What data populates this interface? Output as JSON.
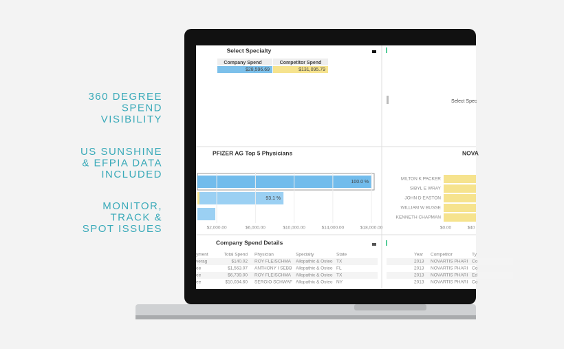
{
  "taglines": [
    [
      "360 DEGREE",
      "SPEND",
      "VISIBILITY"
    ],
    [
      "US SUNSHINE",
      "& EFPIA DATA",
      "INCLUDED"
    ],
    [
      "MONITOR,",
      "TRACK &",
      "SPOT ISSUES"
    ]
  ],
  "specialty_panel": {
    "title": "Select Specialty",
    "headers": [
      "Company Spend",
      "Competitor Spend"
    ],
    "values": [
      "$28,596.69",
      "$131,095.79"
    ]
  },
  "competitor_specialty_panel": {
    "title": "Select Spec"
  },
  "top_physicians": {
    "title": "PFIZER AG Top 5 Physicians",
    "bars": [
      18000,
      8900,
      1850
    ],
    "percent_labels": [
      "100.0 %",
      "93.1 %"
    ],
    "xlim": [
      0,
      18700
    ],
    "xticks": [
      {
        "value": 2000,
        "label": "$2,000.00"
      },
      {
        "value": 6000,
        "label": "$6,000.00"
      },
      {
        "value": 10000,
        "label": "$10,000.00"
      },
      {
        "value": 14000,
        "label": "$14,000.00"
      },
      {
        "value": 18000,
        "label": "$18,000.00"
      }
    ]
  },
  "competitor_physicians": {
    "title": "NOVA",
    "names": [
      "MILTON K PACKER",
      "SIBYL E WRAY",
      "JOHN D EASTON",
      "WILLIAM W BUSSE",
      "KENNETH CHAPMAN"
    ],
    "ticks": [
      "$0.00",
      "$40"
    ]
  },
  "spend_details": {
    "title": "Company Spend Details",
    "columns": [
      "yment",
      "Total Spend",
      "Physician",
      "Specialty",
      "State"
    ],
    "rows": [
      [
        "verag",
        "$140.02",
        "ROY FLEISCHMA",
        "Allopathic & Osteo",
        "TX"
      ],
      [
        "ee",
        "$1,563.07",
        "ANTHONY I SEBB",
        "Allopathic & Osteo",
        "FL"
      ],
      [
        "ee",
        "$6,739.00",
        "ROY FLEISCHMA",
        "Allopathic & Osteo",
        "TX"
      ],
      [
        "ee",
        "$10,034.60",
        "SERGIO SCHWAF",
        "Allopathic & Osteo",
        "NY"
      ]
    ]
  },
  "competitor_details": {
    "columns": [
      "Year",
      "Competitor",
      "Ty"
    ],
    "rows": [
      [
        "2013",
        "NOVARTIS PHARI",
        "Co"
      ],
      [
        "2013",
        "NOVARTIS PHARI",
        "Co"
      ],
      [
        "2013",
        "NOVARTIS PHARI",
        "Ed"
      ],
      [
        "2013",
        "NOVARTIS PHARI",
        "Co"
      ]
    ]
  }
}
